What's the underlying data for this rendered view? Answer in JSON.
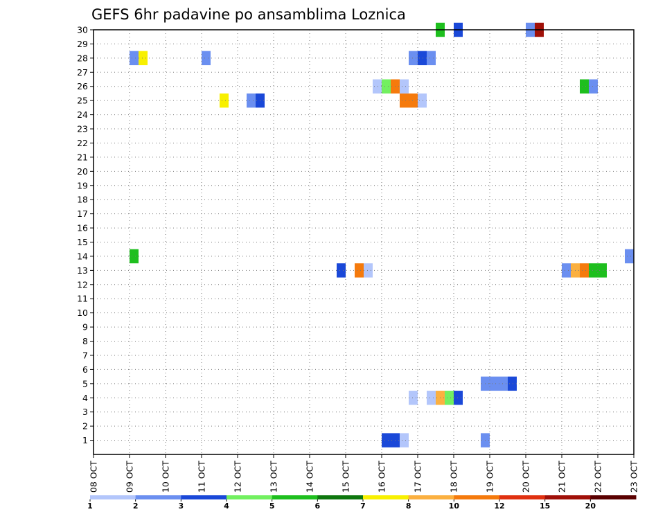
{
  "chart_data": {
    "type": "heatmap",
    "title": "GEFS 6hr padavine po ansamblima Loznica",
    "x_tick_labels": [
      "08 OCT",
      "09 OCT",
      "10 OCT",
      "11 OCT",
      "12 OCT",
      "13 OCT",
      "14 OCT",
      "15 OCT",
      "16 OCT",
      "17 OCT",
      "18 OCT",
      "19 OCT",
      "20 OCT",
      "21 OCT",
      "22 OCT",
      "23 OCT"
    ],
    "y_tick_labels": [
      "1",
      "2",
      "3",
      "4",
      "5",
      "6",
      "7",
      "8",
      "9",
      "10",
      "11",
      "12",
      "13",
      "14",
      "15",
      "16",
      "17",
      "18",
      "19",
      "20",
      "21",
      "22",
      "23",
      "24",
      "25",
      "26",
      "27",
      "28",
      "29",
      "30"
    ],
    "xlim_days": [
      0,
      15
    ],
    "ylim": [
      0,
      30
    ],
    "grid": true,
    "colorbar": {
      "thresholds": [
        "1",
        "2",
        "3",
        "4",
        "5",
        "6",
        "7",
        "8",
        "10",
        "12",
        "15",
        "20"
      ],
      "colors": [
        "#b3c6fb",
        "#6b8ff0",
        "#1a48d8",
        "#72f060",
        "#1ebf1e",
        "#0e770e",
        "#f8f000",
        "#fbb040",
        "#f57a0c",
        "#e03010",
        "#a01008",
        "#5a0000"
      ]
    },
    "values": [
      {
        "member": 1,
        "day": 8.0,
        "level": 3
      },
      {
        "member": 1,
        "day": 8.25,
        "level": 3
      },
      {
        "member": 1,
        "day": 8.5,
        "level": 1
      },
      {
        "member": 1,
        "day": 10.75,
        "level": 2
      },
      {
        "member": 5,
        "day": 10.75,
        "level": 2
      },
      {
        "member": 5,
        "day": 11.0,
        "level": 2
      },
      {
        "member": 5,
        "day": 11.25,
        "level": 2
      },
      {
        "member": 5,
        "day": 11.5,
        "level": 3
      },
      {
        "member": 4,
        "day": 8.75,
        "level": 1
      },
      {
        "member": 4,
        "day": 9.25,
        "level": 1
      },
      {
        "member": 4,
        "day": 9.5,
        "level": 8
      },
      {
        "member": 4,
        "day": 9.75,
        "level": 4
      },
      {
        "member": 4,
        "day": 10.0,
        "level": 3
      },
      {
        "member": 13,
        "day": 6.75,
        "level": 3
      },
      {
        "member": 13,
        "day": 7.25,
        "level": 10
      },
      {
        "member": 13,
        "day": 7.5,
        "level": 1
      },
      {
        "member": 13,
        "day": 13.0,
        "level": 2
      },
      {
        "member": 13,
        "day": 13.25,
        "level": 8
      },
      {
        "member": 13,
        "day": 13.5,
        "level": 10
      },
      {
        "member": 13,
        "day": 13.75,
        "level": 5
      },
      {
        "member": 13,
        "day": 14.0,
        "level": 5
      },
      {
        "member": 14,
        "day": 1.0,
        "level": 5
      },
      {
        "member": 14,
        "day": 14.75,
        "level": 2
      },
      {
        "member": 25,
        "day": 3.5,
        "level": 7
      },
      {
        "member": 25,
        "day": 4.25,
        "level": 2
      },
      {
        "member": 25,
        "day": 4.5,
        "level": 3
      },
      {
        "member": 25,
        "day": 8.5,
        "level": 10
      },
      {
        "member": 25,
        "day": 8.75,
        "level": 10
      },
      {
        "member": 25,
        "day": 9.0,
        "level": 1
      },
      {
        "member": 26,
        "day": 7.75,
        "level": 1
      },
      {
        "member": 26,
        "day": 8.0,
        "level": 4
      },
      {
        "member": 26,
        "day": 8.25,
        "level": 10
      },
      {
        "member": 26,
        "day": 8.5,
        "level": 1
      },
      {
        "member": 26,
        "day": 13.5,
        "level": 5
      },
      {
        "member": 26,
        "day": 13.75,
        "level": 2
      },
      {
        "member": 28,
        "day": 1.0,
        "level": 2
      },
      {
        "member": 28,
        "day": 1.25,
        "level": 7
      },
      {
        "member": 28,
        "day": 3.0,
        "level": 2
      },
      {
        "member": 28,
        "day": 8.75,
        "level": 2
      },
      {
        "member": 28,
        "day": 9.0,
        "level": 3
      },
      {
        "member": 28,
        "day": 9.25,
        "level": 2
      },
      {
        "member": 30,
        "day": 9.5,
        "level": 5
      },
      {
        "member": 30,
        "day": 10.0,
        "level": 3
      },
      {
        "member": 30,
        "day": 12.0,
        "level": 2
      },
      {
        "member": 30,
        "day": 12.25,
        "level": 15
      }
    ],
    "value_note": "member = ensemble member (y), day = days after 08 OCT 00Z (x), level = lower threshold of the colour class"
  }
}
